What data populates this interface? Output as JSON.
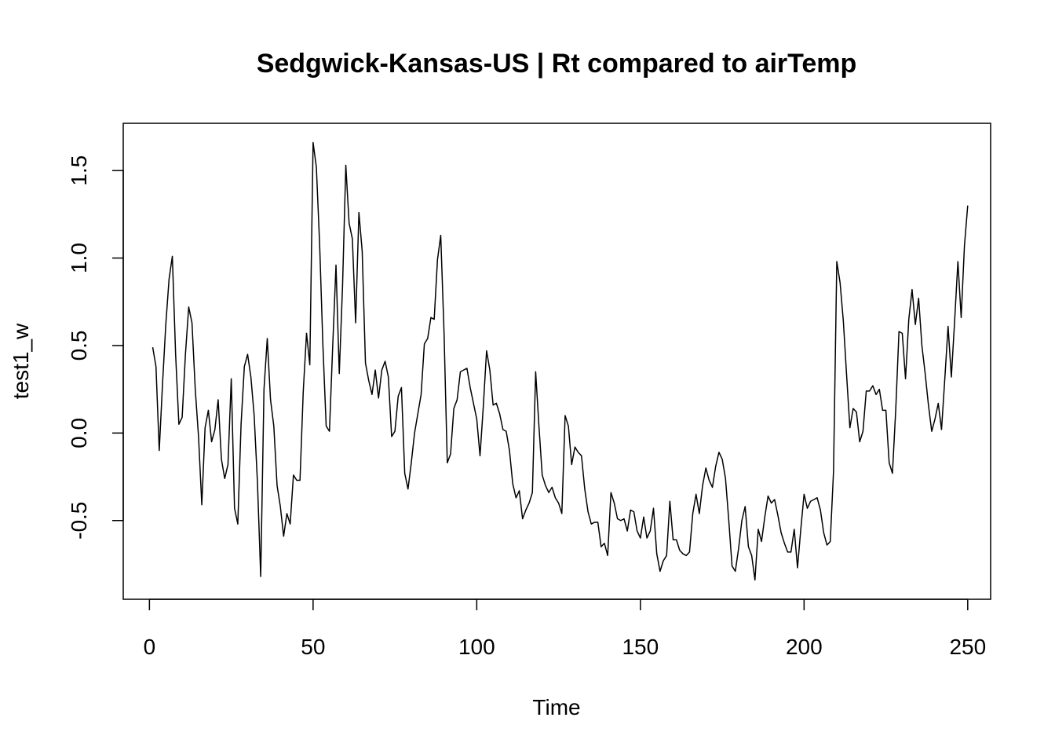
{
  "chart_data": {
    "type": "line",
    "title": "Sedgwick-Kansas-US | Rt compared to airTemp",
    "xlabel": "Time",
    "ylabel": "test1_w",
    "xlim": [
      -8,
      257
    ],
    "ylim": [
      -0.95,
      1.77
    ],
    "xticks": [
      0,
      50,
      100,
      150,
      200,
      250
    ],
    "xtick_labels": [
      "0",
      "50",
      "100",
      "150",
      "200",
      "250"
    ],
    "yticks": [
      -0.5,
      0.0,
      0.5,
      1.0,
      1.5
    ],
    "ytick_labels": [
      "-0.5",
      "0.0",
      "0.5",
      "1.0",
      "1.5"
    ],
    "grid": false,
    "line_color": "#000000",
    "series": [
      {
        "x_start": 1,
        "x_step": 1,
        "values": [
          0.49,
          0.38,
          -0.1,
          0.28,
          0.62,
          0.88,
          1.01,
          0.45,
          0.05,
          0.09,
          0.45,
          0.72,
          0.63,
          0.25,
          -0.02,
          -0.41,
          0.03,
          0.13,
          -0.05,
          0.02,
          0.19,
          -0.15,
          -0.26,
          -0.18,
          0.31,
          -0.43,
          -0.52,
          0.05,
          0.38,
          0.45,
          0.32,
          0.1,
          -0.28,
          -0.82,
          0.25,
          0.54,
          0.19,
          0.04,
          -0.3,
          -0.42,
          -0.59,
          -0.46,
          -0.52,
          -0.24,
          -0.27,
          -0.27,
          0.24,
          0.57,
          0.39,
          1.66,
          1.52,
          1.08,
          0.5,
          0.04,
          0.01,
          0.5,
          0.96,
          0.34,
          0.84,
          1.53,
          1.2,
          1.11,
          0.63,
          1.26,
          1.04,
          0.4,
          0.3,
          0.22,
          0.36,
          0.2,
          0.36,
          0.41,
          0.32,
          -0.02,
          0.01,
          0.21,
          0.26,
          -0.23,
          -0.32,
          -0.17,
          0.0,
          0.11,
          0.22,
          0.51,
          0.54,
          0.66,
          0.65,
          0.99,
          1.13,
          0.58,
          -0.17,
          -0.12,
          0.14,
          0.19,
          0.35,
          0.36,
          0.37,
          0.26,
          0.17,
          0.08,
          -0.13,
          0.15,
          0.47,
          0.36,
          0.16,
          0.17,
          0.11,
          0.02,
          0.01,
          -0.1,
          -0.29,
          -0.37,
          -0.33,
          -0.49,
          -0.44,
          -0.4,
          -0.34,
          0.35,
          0.04,
          -0.24,
          -0.3,
          -0.34,
          -0.31,
          -0.37,
          -0.4,
          -0.46,
          0.1,
          0.04,
          -0.18,
          -0.08,
          -0.11,
          -0.13,
          -0.32,
          -0.45,
          -0.52,
          -0.51,
          -0.51,
          -0.65,
          -0.63,
          -0.7,
          -0.34,
          -0.4,
          -0.49,
          -0.5,
          -0.49,
          -0.56,
          -0.44,
          -0.45,
          -0.56,
          -0.6,
          -0.48,
          -0.6,
          -0.56,
          -0.43,
          -0.69,
          -0.79,
          -0.73,
          -0.7,
          -0.39,
          -0.61,
          -0.61,
          -0.67,
          -0.69,
          -0.7,
          -0.68,
          -0.46,
          -0.35,
          -0.46,
          -0.3,
          -0.2,
          -0.27,
          -0.31,
          -0.19,
          -0.11,
          -0.15,
          -0.26,
          -0.5,
          -0.76,
          -0.79,
          -0.66,
          -0.5,
          -0.42,
          -0.65,
          -0.7,
          -0.84,
          -0.55,
          -0.62,
          -0.48,
          -0.36,
          -0.4,
          -0.38,
          -0.47,
          -0.57,
          -0.63,
          -0.68,
          -0.68,
          -0.55,
          -0.77,
          -0.55,
          -0.35,
          -0.43,
          -0.39,
          -0.38,
          -0.37,
          -0.44,
          -0.57,
          -0.64,
          -0.62,
          -0.22,
          0.98,
          0.86,
          0.64,
          0.33,
          0.03,
          0.14,
          0.12,
          -0.05,
          0.01,
          0.24,
          0.24,
          0.27,
          0.22,
          0.25,
          0.13,
          0.13,
          -0.17,
          -0.23,
          0.13,
          0.58,
          0.57,
          0.31,
          0.65,
          0.82,
          0.62,
          0.77,
          0.5,
          0.34,
          0.16,
          0.01,
          0.08,
          0.17,
          0.02,
          0.31,
          0.61,
          0.32,
          0.64,
          0.98,
          0.66,
          1.07,
          1.3
        ]
      }
    ]
  }
}
